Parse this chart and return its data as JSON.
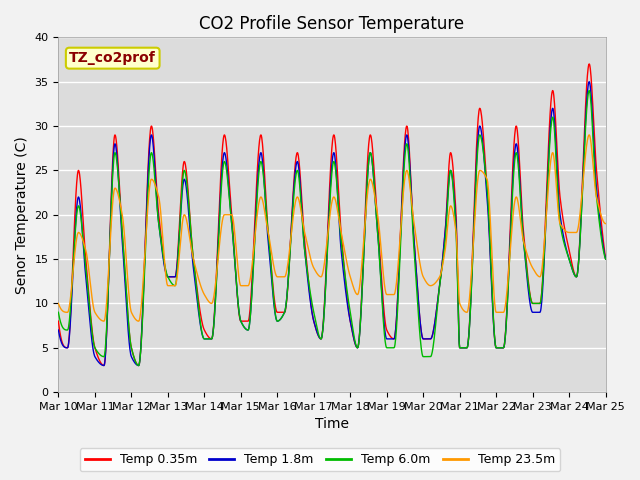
{
  "title": "CO2 Profile Sensor Temperature",
  "xlabel": "Time",
  "ylabel": "Senor Temperature (C)",
  "annotation": "TZ_co2prof",
  "annotation_color": "#8B0000",
  "annotation_bg": "#FFFFCC",
  "annotation_border": "#CCCC00",
  "ylim": [
    0,
    40
  ],
  "yticks": [
    0,
    5,
    10,
    15,
    20,
    25,
    30,
    35,
    40
  ],
  "xtick_labels": [
    "Mar 10",
    "Mar 11",
    "Mar 12",
    "Mar 13",
    "Mar 14",
    "Mar 15",
    "Mar 16",
    "Mar 17",
    "Mar 18",
    "Mar 19",
    "Mar 20",
    "Mar 21",
    "Mar 22",
    "Mar 23",
    "Mar 24",
    "Mar 25"
  ],
  "legend_labels": [
    "Temp 0.35m",
    "Temp 1.8m",
    "Temp 6.0m",
    "Temp 23.5m"
  ],
  "line_colors": [
    "#FF0000",
    "#0000CC",
    "#00BB00",
    "#FF9900"
  ],
  "bg_color": "#E8E8E8",
  "plot_bg": "#DCDCDC",
  "grid_color": "#FFFFFF",
  "title_fontsize": 12,
  "label_fontsize": 10,
  "tick_fontsize": 8,
  "legend_fontsize": 9
}
